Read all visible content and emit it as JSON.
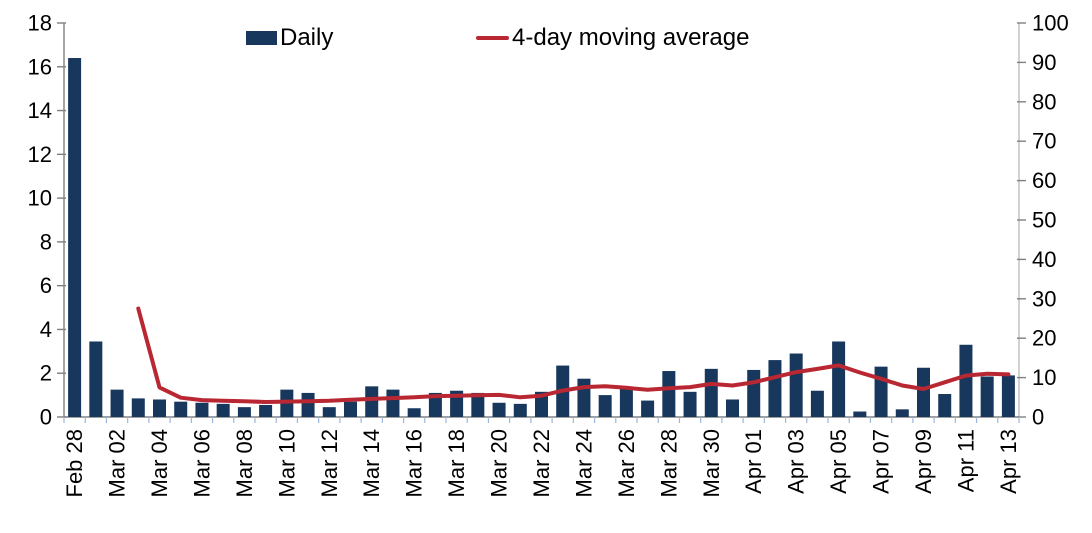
{
  "chart_data": {
    "type": "bar",
    "title": "",
    "categories": [
      "Feb 28",
      "Mar 01",
      "Mar 02",
      "Mar 03",
      "Mar 04",
      "Mar 05",
      "Mar 06",
      "Mar 07",
      "Mar 08",
      "Mar 09",
      "Mar 10",
      "Mar 11",
      "Mar 12",
      "Mar 13",
      "Mar 14",
      "Mar 15",
      "Mar 16",
      "Mar 17",
      "Mar 18",
      "Mar 19",
      "Mar 20",
      "Mar 21",
      "Mar 22",
      "Mar 23",
      "Mar 24",
      "Mar 25",
      "Mar 26",
      "Mar 27",
      "Mar 28",
      "Mar 29",
      "Mar 30",
      "Mar 31",
      "Apr 01",
      "Apr 02",
      "Apr 03",
      "Apr 04",
      "Apr 05",
      "Apr 06",
      "Apr 07",
      "Apr 08",
      "Apr 09",
      "Apr 10",
      "Apr 11",
      "Apr 12",
      "Apr 13"
    ],
    "x_tick_label_every": 2,
    "series": [
      {
        "name": "Daily",
        "type": "bar",
        "axis": "left",
        "color": "#17375D",
        "values": [
          16.4,
          3.45,
          1.25,
          0.85,
          0.8,
          0.7,
          0.65,
          0.6,
          0.45,
          0.55,
          1.25,
          1.1,
          0.45,
          0.7,
          1.4,
          1.25,
          0.4,
          1.1,
          1.2,
          1.1,
          0.65,
          0.6,
          1.15,
          2.35,
          1.75,
          1.0,
          1.3,
          0.75,
          2.1,
          1.15,
          2.2,
          0.8,
          2.15,
          2.6,
          2.9,
          1.2,
          3.45,
          0.25,
          2.3,
          0.35,
          2.25,
          1.05,
          3.3,
          1.85,
          1.9
        ]
      },
      {
        "name": "4-day moving average",
        "type": "line",
        "axis": "right",
        "color": "#B92732",
        "values": [
          null,
          null,
          null,
          27.5,
          7.5,
          4.9,
          4.3,
          4.1,
          4.0,
          3.8,
          3.9,
          4.0,
          4.1,
          4.4,
          4.6,
          4.8,
          5.0,
          5.3,
          5.4,
          5.5,
          5.6,
          5.0,
          5.4,
          6.7,
          7.6,
          7.8,
          7.4,
          6.9,
          7.3,
          7.6,
          8.4,
          8.0,
          8.8,
          10.1,
          11.4,
          12.2,
          13.1,
          11.3,
          9.7,
          8.0,
          7.1,
          8.8,
          10.5,
          11.0,
          10.8
        ]
      }
    ],
    "left_axis": {
      "min": 0,
      "max": 18,
      "ticks": [
        0,
        2,
        4,
        6,
        8,
        10,
        12,
        14,
        16,
        18
      ]
    },
    "right_axis": {
      "min": 0,
      "max": 100,
      "ticks": [
        0,
        10,
        20,
        30,
        40,
        50,
        60,
        70,
        80,
        90,
        100
      ]
    },
    "grid": false,
    "legend_position": "top",
    "colors": {
      "axis_line": "#808080",
      "right_axis_line": "#BFBFBF",
      "x_tick_mark": "#9DB6D9",
      "tick_mark": "#808080",
      "label_text": "#000000"
    }
  }
}
